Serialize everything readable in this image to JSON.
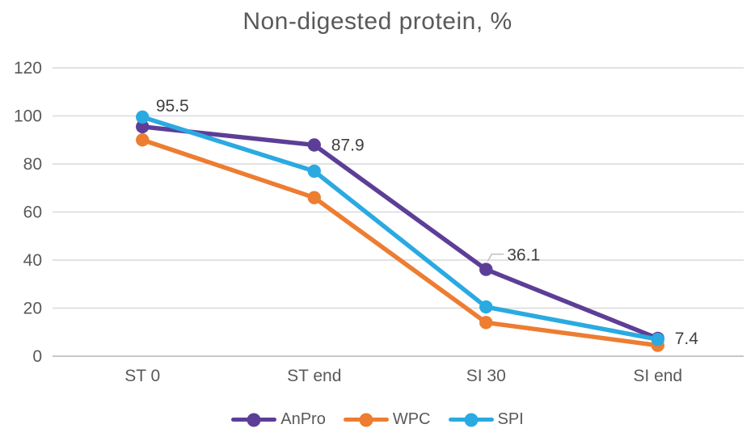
{
  "chart_data": {
    "type": "line",
    "title": "Non-digested protein, %",
    "categories": [
      "ST 0",
      "ST end",
      "SI 30",
      "SI end"
    ],
    "series": [
      {
        "name": "AnPro",
        "color": "#5D3E97",
        "values": [
          95.5,
          87.9,
          36.1,
          7.4
        ]
      },
      {
        "name": "WPC",
        "color": "#ED7D31",
        "values": [
          90,
          66,
          14,
          4.5
        ]
      },
      {
        "name": "SPI",
        "color": "#2AAAE1",
        "values": [
          99.5,
          77,
          20.5,
          7
        ]
      }
    ],
    "data_labels": [
      {
        "series_index": 0,
        "point_index": 0,
        "text": "95.5",
        "placement": "above"
      },
      {
        "series_index": 0,
        "point_index": 1,
        "text": "87.9",
        "placement": "right"
      },
      {
        "series_index": 0,
        "point_index": 2,
        "text": "36.1",
        "placement": "callout-right"
      },
      {
        "series_index": 0,
        "point_index": 3,
        "text": "7.4",
        "placement": "right"
      }
    ],
    "xlabel": "",
    "ylabel": "",
    "ylim": [
      0,
      120
    ],
    "yticks": [
      0,
      20,
      40,
      60,
      80,
      100,
      120
    ],
    "grid": true,
    "legend_position": "bottom",
    "colors": {
      "gridline": "#D9D9D9",
      "axis_line": "#BFBFBF",
      "axis_text": "#595959",
      "title_text": "#595959",
      "label_text": "#404040",
      "leader_line": "#BFBFBF",
      "background": "#FFFFFF"
    }
  }
}
